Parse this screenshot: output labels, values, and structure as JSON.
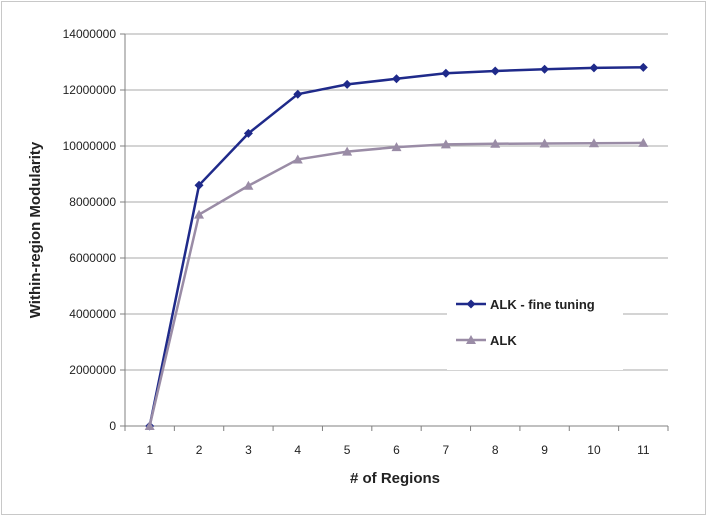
{
  "chart_data": {
    "type": "line",
    "xlabel": "# of Regions",
    "ylabel": "Within-region Modularity",
    "x": [
      1,
      2,
      3,
      4,
      5,
      6,
      7,
      8,
      9,
      10,
      11
    ],
    "ylim": [
      0,
      14000000
    ],
    "yticks": [
      "0",
      "2000000",
      "4000000",
      "6000000",
      "8000000",
      "10000000",
      "12000000",
      "14000000"
    ],
    "grid": "horizontal",
    "legend_position": "right",
    "series": [
      {
        "name": "ALK - fine tuning",
        "color": "#1f2a8a",
        "marker": "diamond",
        "values": [
          0,
          8600000,
          10450000,
          11850000,
          12200000,
          12400000,
          12600000,
          12680000,
          12740000,
          12790000,
          12810000
        ]
      },
      {
        "name": "ALK",
        "color": "#9a8ca6",
        "marker": "triangle",
        "values": [
          0,
          7550000,
          8580000,
          9520000,
          9800000,
          9960000,
          10060000,
          10080000,
          10090000,
          10100000,
          10110000
        ]
      }
    ]
  }
}
